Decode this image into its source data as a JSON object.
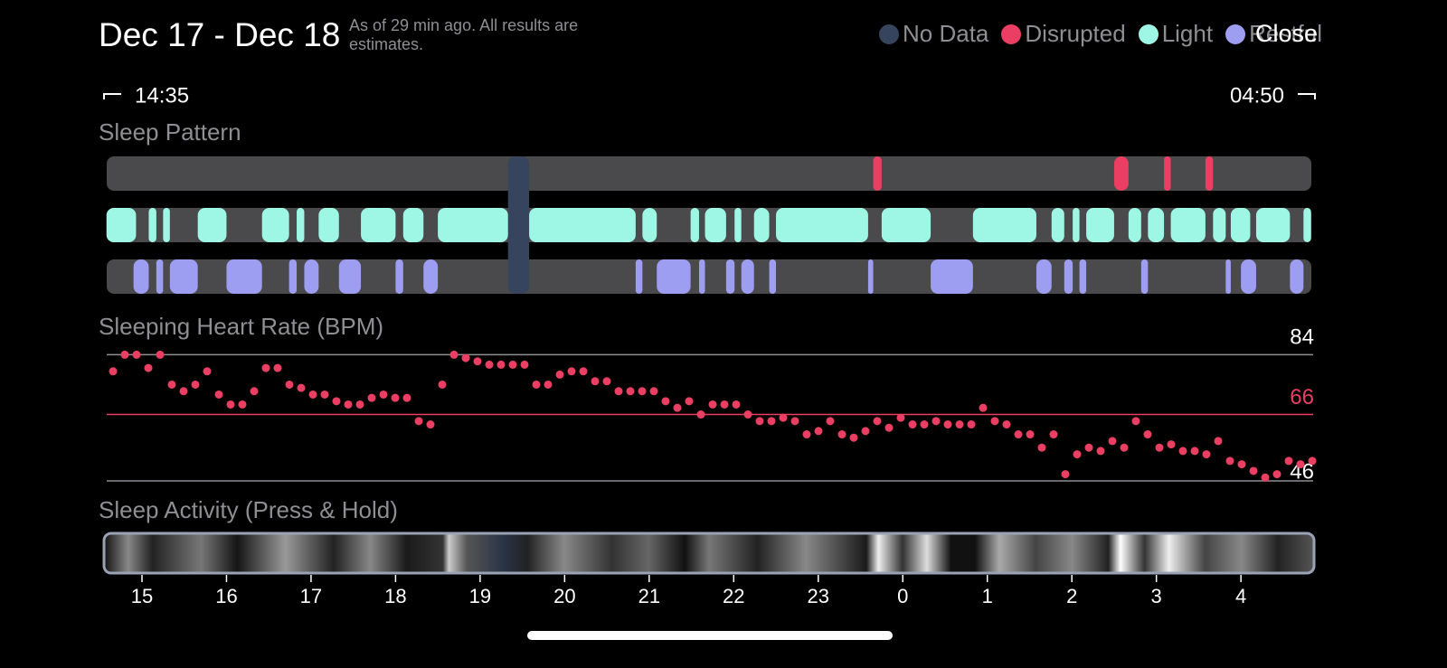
{
  "header": {
    "title": "Dec 17 - Dec 18",
    "note": "As of 29 min ago. All results are estimates.",
    "close": "Close"
  },
  "range": {
    "start": "14:35",
    "end": "04:50"
  },
  "chart_data": [
    {
      "type": "timeline",
      "title": "Sleep Pattern",
      "xlim": [
        14.583,
        28.833
      ],
      "series": [
        {
          "name": "No Data",
          "color": "#37445e",
          "segments": [
            [
              19.33,
              19.58
            ]
          ]
        },
        {
          "name": "Disrupted",
          "color": "#ea3f62",
          "segments": [
            [
              23.65,
              23.75
            ],
            [
              26.5,
              26.67
            ],
            [
              27.09,
              27.17
            ],
            [
              27.58,
              27.67
            ]
          ]
        },
        {
          "name": "Light",
          "color": "#9ef7e5",
          "segments": [
            [
              14.58,
              14.93
            ],
            [
              15.08,
              15.17
            ],
            [
              15.25,
              15.33
            ],
            [
              15.66,
              16.0
            ],
            [
              16.42,
              16.74
            ],
            [
              16.83,
              16.92
            ],
            [
              17.09,
              17.33
            ],
            [
              17.59,
              18.0
            ],
            [
              18.09,
              18.33
            ],
            [
              18.5,
              19.33
            ],
            [
              19.58,
              20.84
            ],
            [
              20.92,
              21.09
            ],
            [
              21.49,
              21.59
            ],
            [
              21.66,
              21.91
            ],
            [
              22.01,
              22.09
            ],
            [
              22.24,
              22.42
            ],
            [
              22.5,
              23.59
            ],
            [
              23.75,
              24.33
            ],
            [
              24.83,
              25.58
            ],
            [
              25.76,
              25.91
            ],
            [
              26.01,
              26.09
            ],
            [
              26.17,
              26.5
            ],
            [
              26.67,
              26.82
            ],
            [
              26.9,
              27.09
            ],
            [
              27.17,
              27.58
            ],
            [
              27.67,
              27.82
            ],
            [
              27.88,
              28.11
            ],
            [
              28.18,
              28.58
            ],
            [
              28.74,
              28.83
            ]
          ]
        },
        {
          "name": "Restful",
          "color": "#9d9ef2",
          "segments": [
            [
              14.9,
              15.08
            ],
            [
              15.17,
              15.25
            ],
            [
              15.33,
              15.66
            ],
            [
              16.0,
              16.42
            ],
            [
              16.74,
              16.83
            ],
            [
              16.92,
              17.09
            ],
            [
              17.33,
              17.59
            ],
            [
              18.0,
              18.09
            ],
            [
              18.33,
              18.5
            ],
            [
              20.84,
              20.92
            ],
            [
              21.09,
              21.49
            ],
            [
              21.59,
              21.66
            ],
            [
              21.91,
              22.01
            ],
            [
              22.09,
              22.24
            ],
            [
              22.42,
              22.5
            ],
            [
              23.59,
              23.65
            ],
            [
              24.33,
              24.83
            ],
            [
              25.58,
              25.76
            ],
            [
              25.91,
              26.01
            ],
            [
              26.09,
              26.17
            ],
            [
              26.82,
              26.9
            ],
            [
              27.82,
              27.88
            ],
            [
              28.0,
              28.18
            ],
            [
              28.58,
              28.74
            ]
          ]
        }
      ]
    },
    {
      "type": "scatter",
      "title": "Sleeping Heart Rate (BPM)",
      "color": "#ea3f62",
      "values": [
        79,
        84,
        84,
        80,
        84,
        75,
        73,
        75,
        79,
        72,
        69,
        69,
        73,
        80,
        80,
        75,
        74,
        72,
        72,
        70,
        69,
        69,
        71,
        72,
        71,
        71,
        64,
        63,
        75,
        84,
        83,
        82,
        81,
        81,
        81,
        81,
        75,
        75,
        78,
        79,
        79,
        76,
        76,
        73,
        73,
        73,
        73,
        70,
        68,
        70,
        66,
        69,
        69,
        69,
        66,
        64,
        64,
        65,
        64,
        60,
        61,
        64,
        60,
        59,
        61,
        64,
        62,
        65,
        63,
        63,
        64,
        63,
        63,
        63,
        68,
        64,
        63,
        60,
        60,
        56,
        60,
        48,
        54,
        56,
        55,
        58,
        56,
        64,
        60,
        56,
        57,
        55,
        55,
        54,
        58,
        52,
        51,
        49,
        47,
        48,
        52,
        51,
        52
      ],
      "ylim": [
        40,
        95
      ],
      "yticks": [
        46,
        84
      ],
      "average": 66
    },
    {
      "type": "strip",
      "title": "Sleep Activity (Press & Hold)",
      "xlim": [
        14.583,
        28.833
      ],
      "xticks": [
        15,
        16,
        17,
        18,
        19,
        20,
        21,
        22,
        23,
        {
          "value": 24,
          "label": "0"
        },
        {
          "value": 25,
          "label": "1"
        },
        {
          "value": 26,
          "label": "2"
        },
        {
          "value": 27,
          "label": "3"
        },
        {
          "value": 28,
          "label": "4"
        }
      ]
    }
  ]
}
